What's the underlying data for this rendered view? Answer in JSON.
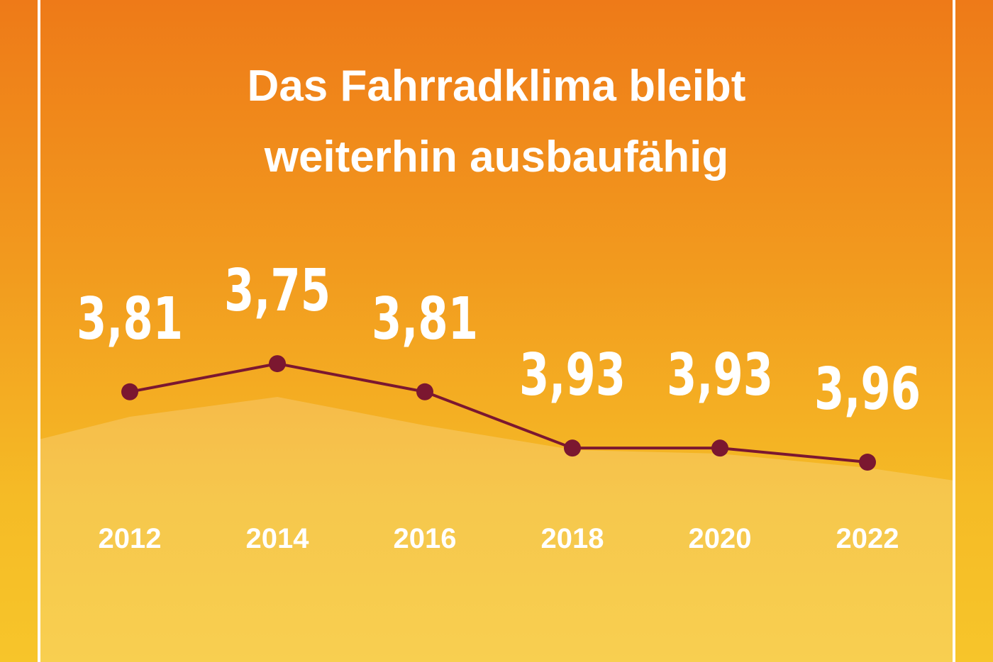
{
  "chart_data": {
    "type": "line",
    "title": "Das Fahrradklima bleibt weiterhin ausbaufähig",
    "categories": [
      "2012",
      "2014",
      "2016",
      "2018",
      "2020",
      "2022"
    ],
    "values": [
      3.81,
      3.75,
      3.81,
      3.93,
      3.93,
      3.96
    ],
    "value_labels": [
      "3,81",
      "3,75",
      "3,81",
      "3,93",
      "3,93",
      "3,96"
    ],
    "color": "#7b1730",
    "ylim": [
      4.0,
      3.7
    ]
  }
}
